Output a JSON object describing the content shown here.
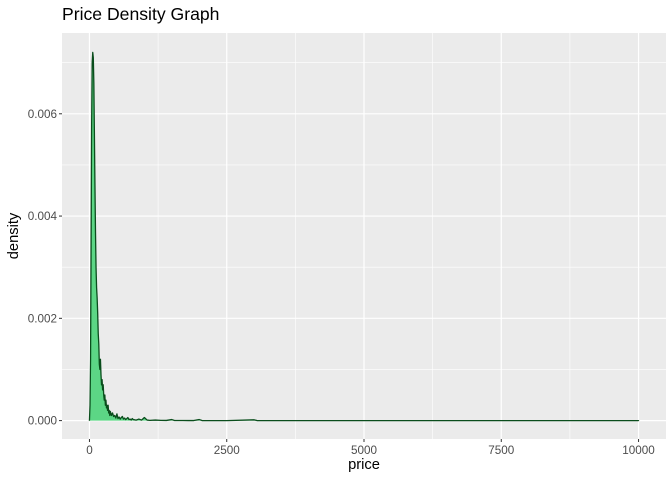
{
  "chart_data": {
    "type": "area",
    "title": "Price Density Graph",
    "xlabel": "price",
    "ylabel": "density",
    "xlim": [
      -500,
      10500
    ],
    "ylim": [
      -0.00036,
      0.00758
    ],
    "x_ticks": [
      0,
      2500,
      5000,
      7500,
      10000
    ],
    "x_tick_labels": [
      "0",
      "2500",
      "5000",
      "7500",
      "10000"
    ],
    "y_ticks": [
      0.0,
      0.002,
      0.004,
      0.006
    ],
    "y_tick_labels": [
      "0.000",
      "0.002",
      "0.004",
      "0.006"
    ],
    "grid": true,
    "legend": "none",
    "fill_color": "#5cd685",
    "line_color": "#0a4d1c",
    "panel_color": "#ebebeb",
    "series": [
      {
        "x": [
          0,
          10,
          20,
          30,
          40,
          50,
          60,
          70,
          80,
          90,
          100,
          110,
          120,
          130,
          140,
          150,
          160,
          170,
          180,
          190,
          200,
          210,
          220,
          230,
          240,
          250,
          260,
          270,
          280,
          290,
          300,
          310,
          320,
          330,
          340,
          350,
          360,
          370,
          380,
          400,
          420,
          440,
          460,
          480,
          500,
          520,
          540,
          560,
          580,
          600,
          620,
          640,
          660,
          680,
          700,
          720,
          740,
          760,
          780,
          800,
          850,
          900,
          950,
          1000,
          1050,
          1100,
          1200,
          1300,
          1400,
          1500,
          1550,
          1600,
          1700,
          1800,
          1900,
          2000,
          2050,
          2100,
          2500,
          3000,
          3050,
          3100,
          3500,
          4000,
          5000,
          6000,
          7000,
          8000,
          9000,
          10000
        ],
        "y": [
          0.0,
          0.0003,
          0.0012,
          0.0035,
          0.0058,
          0.007,
          0.0072,
          0.0071,
          0.0066,
          0.0056,
          0.0046,
          0.0037,
          0.003,
          0.0026,
          0.0024,
          0.0021,
          0.0017,
          0.0015,
          0.0011,
          0.001,
          0.0012,
          0.0009,
          0.0007,
          0.0008,
          0.0006,
          0.0007,
          0.0005,
          0.0004,
          0.0005,
          0.0003,
          0.0004,
          0.00025,
          0.0003,
          0.0002,
          0.0003,
          0.00015,
          0.0002,
          0.0001,
          0.00018,
          0.0001,
          0.00015,
          8e-05,
          0.0001,
          5e-05,
          0.00013,
          4e-05,
          7e-05,
          3e-05,
          6e-05,
          8e-05,
          3e-05,
          5e-05,
          2e-05,
          4e-05,
          6e-05,
          2e-05,
          3e-05,
          1e-05,
          4e-05,
          2e-05,
          1e-05,
          3e-05,
          1e-05,
          6e-05,
          1e-05,
          5e-06,
          1e-05,
          5e-06,
          3e-06,
          2e-05,
          2e-06,
          2e-06,
          2e-06,
          1e-06,
          1e-06,
          2e-05,
          1e-06,
          0.0,
          0.0,
          1.5e-05,
          1e-06,
          0.0,
          0.0,
          0.0,
          0.0,
          0.0,
          0.0,
          0.0,
          0.0,
          0.0
        ]
      }
    ]
  }
}
